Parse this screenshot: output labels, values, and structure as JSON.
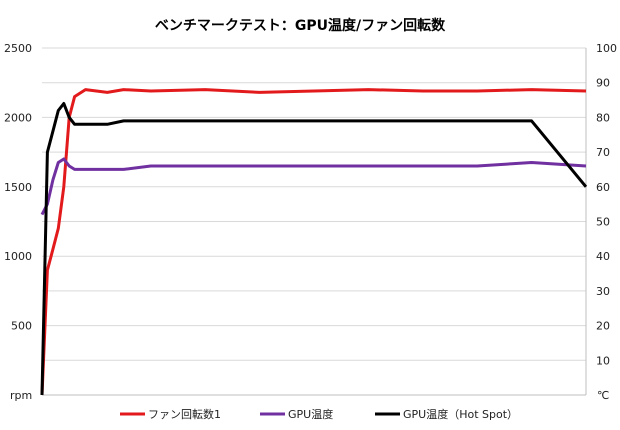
{
  "chart_data": {
    "type": "line",
    "title": "ベンチマークテスト：GPU温度/ファン回転数",
    "left_axis": {
      "unit": "rpm",
      "ylim": [
        0,
        2500
      ],
      "ticks": [
        "2500",
        "2000",
        "1500",
        "1000",
        "500"
      ]
    },
    "right_axis": {
      "unit": "℃",
      "ylim": [
        0,
        100
      ],
      "ticks": [
        "100",
        "90",
        "80",
        "70",
        "60",
        "50",
        "40",
        "30",
        "20",
        "10"
      ]
    },
    "grid": true,
    "legend_position": "bottom",
    "x": [
      0,
      1,
      2,
      3,
      4,
      5,
      6,
      8,
      10,
      12,
      15,
      20,
      30,
      40,
      50,
      60,
      70,
      80,
      90,
      100
    ],
    "series": [
      {
        "name": "ファン回転数1",
        "axis": "left",
        "color": "#e31a1c",
        "values": [
          0,
          900,
          1050,
          1200,
          1500,
          2000,
          2150,
          2200,
          2190,
          2180,
          2200,
          2190,
          2200,
          2180,
          2190,
          2200,
          2190,
          2190,
          2200,
          2190
        ]
      },
      {
        "name": "GPU温度",
        "axis": "right",
        "color": "#7030a0",
        "values": [
          52,
          55,
          62,
          67,
          68,
          66,
          65,
          65,
          65,
          65,
          65,
          66,
          66,
          66,
          66,
          66,
          66,
          66,
          67,
          66
        ]
      },
      {
        "name": "GPU温度（Hot Spot）",
        "axis": "right",
        "color": "#000000",
        "values": [
          0,
          70,
          76,
          82,
          84,
          80,
          78,
          78,
          78,
          78,
          79,
          79,
          79,
          79,
          79,
          79,
          79,
          79,
          79,
          60
        ]
      }
    ]
  }
}
